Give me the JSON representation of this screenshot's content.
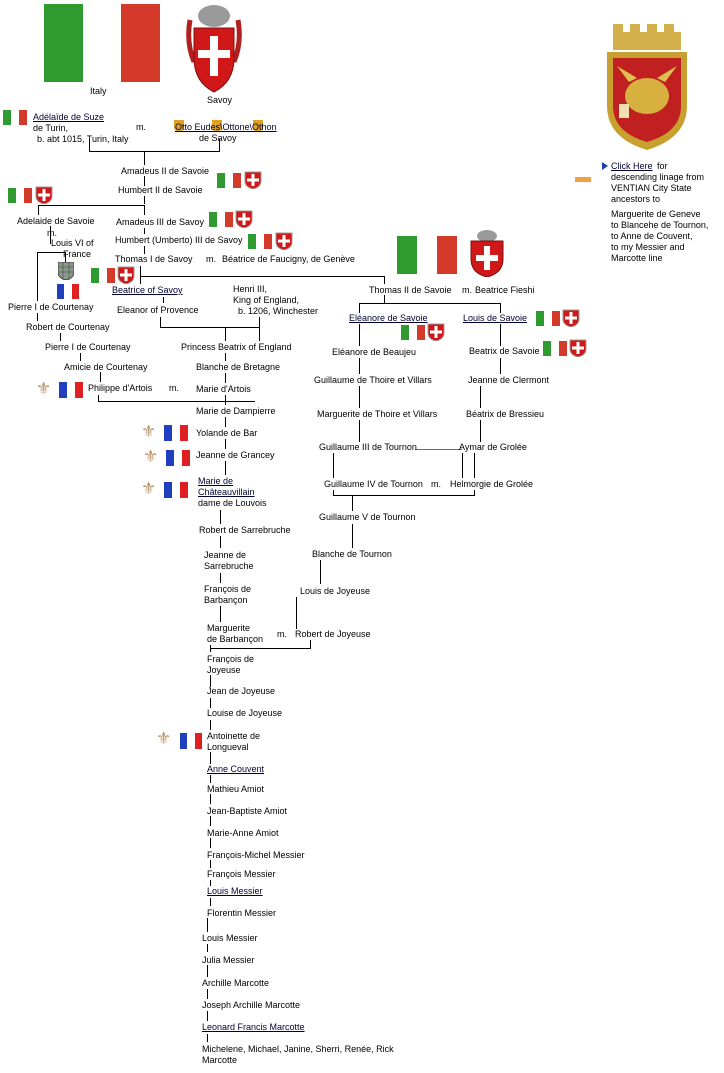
{
  "flags": {
    "italy_label": "Italy",
    "savoy_label": "Savoy"
  },
  "colors": {
    "italy_green": "#2f9a2f",
    "italy_red": "#d43a2a",
    "france_blue": "#1f3fbf",
    "france_red": "#e02020",
    "savoy_red": "#d01818",
    "venice_gold": "#c8a030",
    "link_bullet": "#1a3fb0",
    "orange_marker": "#f0a040"
  },
  "icons": [
    "italy-flag-icon",
    "france-flag-icon",
    "savoy-shield-icon",
    "fleur-de-lis-icon",
    "venice-lion-shield-icon",
    "courtenay-shield-icon",
    "triangle-bullet-icon"
  ],
  "sidebar": {
    "link_label": "Click Here",
    "text_1": "for",
    "text_2": "descending linage from",
    "text_3": "VENTIAN City State",
    "text_4": "ancestors to",
    "text_5": "Marguerite de Geneve",
    "text_6": "to Blancehe de Tournon,",
    "text_7": "to Anne de Couvent,",
    "text_8": "to my Messier and",
    "text_9": "Marcotte line"
  },
  "people": {
    "adelaide_suze": "Adélaïde de Suze",
    "adelaide_suze_2": "de Turin,",
    "adelaide_suze_3": "b. abt 1015, Turin, Italy",
    "m1": "m.",
    "otto": "Otto Eudes\\Ottone\\Othon",
    "otto_2": "de Savoy",
    "amadeus2": "Amadeus II de Savoie",
    "humbert2": "Humbert II de Savoie",
    "adelaide_savoie": "Adelaide de Savoie",
    "adelaide_m": "m.",
    "louis6": "Louis VI of",
    "louis6_2": "France",
    "amadeus3": "Amadeus III de Savoy",
    "humbert3": "Humbert (Umberto) III de Savoy",
    "thomas1": "Thomas I de Savoy",
    "thomas1_m": "m.",
    "beatrice_faucigny": "Béatrice de Faucigny, de Genève",
    "pierre_courtenay_1": "Pierre I de Courtenay",
    "robert_courtenay": "Robert de Courtenay",
    "pierre_courtenay_2": "Pierre I de Courtenay",
    "amicie": "Amicie de Courtenay",
    "philippe_artois": "Philippe d'Artois",
    "philippe_m": "m.",
    "beatrice_savoy": "Beatrice of Savoy",
    "eleanor_provence": "Eleanor of Provence",
    "henry3": "Henri III,",
    "henry3_2": "King of England,",
    "henry3_3": "b. 1206, Winchester",
    "thomas2": "Thomas II de Savoie",
    "thomas2_m": "m.",
    "beatrice_fieschi": "Beatrice Fieshi",
    "eleanore_savoie": "Eléanore de Savoie",
    "louis_savoie": "Louis de Savoie",
    "eleanore_beaujeu": "Eléanore de Beaujeu",
    "beatrix_savoie": "Beatrix de Savoie",
    "guillaume_thoire": "Guillaume de Thoire et Villars",
    "jeanne_clermont": "Jeanne de Clermont",
    "marguerite_thoire": "Marguerite de Thoire et Villars",
    "beatrix_bressieu": "Béatrix de Bressieu",
    "guillaume3": "Guillaume III de Tournon",
    "aymar": "Aymar de Grolée",
    "guillaume4": "Guillaume IV de Tournon",
    "guillaume4_m": "m.",
    "helmorgie": "Helmorgie de Grolée",
    "guillaume5": "Guillaume V de Tournon",
    "blanche_tournon": "Blanche de Tournon",
    "louis_joyeuse": "Louis de Joyeuse",
    "robert_joyeuse": "Robert de Joyeuse",
    "princess_beatrix": "Princess Beatrix of England",
    "blanche_bretagne": "Blanche de Bretagne",
    "marie_artois": "Marie d'Artois",
    "marie_dampierre": "Marie de Dampierre",
    "yolande_bar": "Yolande de Bar",
    "jeanne_grancey": "Jeanne de Grancey",
    "marie_chat_1": "Marie de",
    "marie_chat_2": "Châteauvillain",
    "marie_chat_3": "dame de Louvois",
    "robert_sarrebruche": "Robert de Sarrebruche",
    "jeanne_sarre_1": "Jeanne de",
    "jeanne_sarre_2": "Sarrebruche",
    "francois_barb_1": "François de",
    "francois_barb_2": "Barbançon",
    "marguerite_barb_1": "Marguerite",
    "marguerite_barb_2": "de Barbançon",
    "marguerite_m": "m.",
    "francois_joy_1": "François de",
    "francois_joy_2": "Joyeuse",
    "jean_joyeuse": "Jean de Joyeuse",
    "louise_joyeuse": "Louise de Joyeuse",
    "antoinette_1": "Antoinette de",
    "antoinette_2": "Longueval",
    "anne_couvent": "Anne Couvent",
    "mathieu": "Mathieu Amiot",
    "jean_baptiste": "Jean-Baptiste Amiot",
    "marie_anne": "Marie-Anne Amiot",
    "francois_michel": "François-Michel Messier",
    "francois_messier": "François  Messier",
    "louis_messier_u": "Louis Messier",
    "florentin": "Florentin Messier",
    "louis_messier": "Louis Messier",
    "julia": "Julia Messier",
    "archille": "Archille Marcotte",
    "joseph": "Joseph Archille Marcotte",
    "leonard": "Leonard Francis Marcotte",
    "children_1": "Michelene, Michael, Janine, Sherri,  Renée, Rick",
    "children_2": "Marcotte"
  }
}
